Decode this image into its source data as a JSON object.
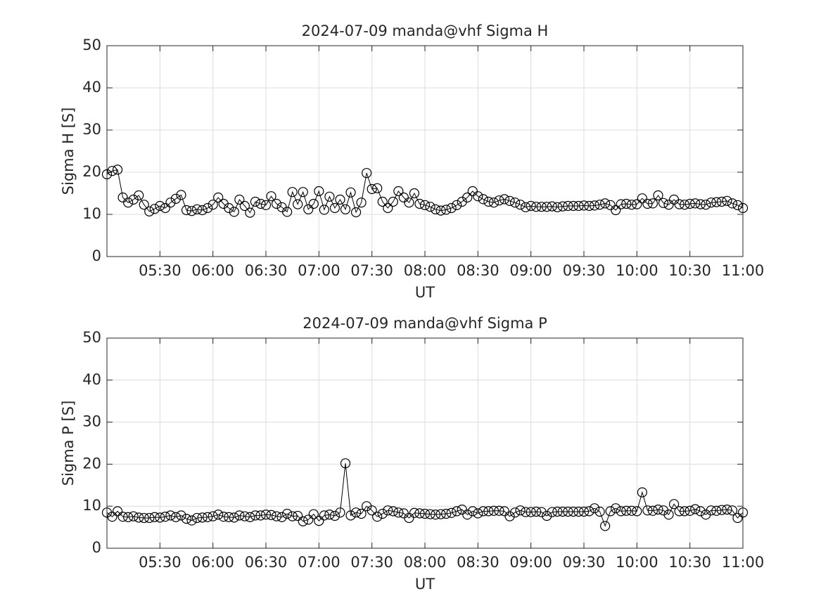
{
  "chart_data": [
    {
      "type": "line",
      "title": "2024-07-09  manda@vhf Sigma H",
      "x_label": "UT",
      "y_label": "Sigma H [S]",
      "color": "#000000",
      "marker": "circle",
      "grid": true,
      "xlim": [
        "05:00",
        "11:00"
      ],
      "xticks": [
        "05:30",
        "06:00",
        "06:30",
        "07:00",
        "07:30",
        "08:00",
        "08:30",
        "09:00",
        "09:30",
        "10:00",
        "10:30",
        "11:00"
      ],
      "ylim": [
        0,
        50
      ],
      "yticks": [
        0,
        10,
        20,
        30,
        40,
        50
      ],
      "x": [
        "05:00",
        "05:03",
        "05:06",
        "05:09",
        "05:12",
        "05:15",
        "05:18",
        "05:21",
        "05:24",
        "05:27",
        "05:30",
        "05:33",
        "05:36",
        "05:39",
        "05:42",
        "05:45",
        "05:48",
        "05:51",
        "05:54",
        "05:57",
        "06:00",
        "06:03",
        "06:06",
        "06:09",
        "06:12",
        "06:15",
        "06:18",
        "06:21",
        "06:24",
        "06:27",
        "06:30",
        "06:33",
        "06:36",
        "06:39",
        "06:42",
        "06:45",
        "06:48",
        "06:51",
        "06:54",
        "06:57",
        "07:00",
        "07:03",
        "07:06",
        "07:09",
        "07:12",
        "07:15",
        "07:18",
        "07:21",
        "07:24",
        "07:27",
        "07:30",
        "07:33",
        "07:36",
        "07:39",
        "07:42",
        "07:45",
        "07:48",
        "07:51",
        "07:54",
        "07:57",
        "08:00",
        "08:03",
        "08:06",
        "08:09",
        "08:12",
        "08:15",
        "08:18",
        "08:21",
        "08:24",
        "08:27",
        "08:30",
        "08:33",
        "08:36",
        "08:39",
        "08:42",
        "08:45",
        "08:48",
        "08:51",
        "08:54",
        "08:57",
        "09:00",
        "09:03",
        "09:06",
        "09:09",
        "09:12",
        "09:15",
        "09:18",
        "09:21",
        "09:24",
        "09:27",
        "09:30",
        "09:33",
        "09:36",
        "09:39",
        "09:42",
        "09:45",
        "09:48",
        "09:51",
        "09:54",
        "09:57",
        "10:00",
        "10:03",
        "10:06",
        "10:09",
        "10:12",
        "10:15",
        "10:18",
        "10:21",
        "10:24",
        "10:27",
        "10:30",
        "10:33",
        "10:36",
        "10:39",
        "10:42",
        "10:45",
        "10:48",
        "10:51",
        "10:54",
        "10:57",
        "11:00"
      ],
      "values": [
        19.5,
        20.3,
        20.6,
        14,
        12.8,
        13.5,
        14.5,
        12.3,
        10.7,
        11.3,
        12,
        11.5,
        12.8,
        13.7,
        14.6,
        11,
        10.8,
        11.2,
        11,
        11.5,
        12.3,
        14,
        12.5,
        11.5,
        10.6,
        13.5,
        12,
        10.4,
        13,
        12.5,
        12.2,
        14.3,
        12.5,
        11.7,
        10.6,
        15.3,
        12.4,
        15.3,
        11.2,
        12.5,
        15.5,
        11.1,
        14.2,
        11.5,
        13.5,
        11.2,
        15.2,
        10.5,
        12.8,
        19.8,
        16,
        16.2,
        13,
        11.5,
        13,
        15.5,
        14,
        12.8,
        15,
        12.5,
        12.2,
        11.8,
        11.2,
        10.9,
        11.1,
        11.5,
        12.2,
        13,
        14,
        15.5,
        14.3,
        13.6,
        13,
        12.8,
        13.3,
        13.6,
        13.2,
        12.8,
        12.3,
        11.7,
        12,
        11.8,
        11.8,
        11.8,
        11.9,
        11.7,
        11.9,
        12,
        12,
        12,
        12.1,
        12,
        12.1,
        12.3,
        12.6,
        12.2,
        11,
        12.4,
        12.5,
        12.3,
        12.4,
        13.8,
        12.5,
        12.6,
        14.5,
        12.7,
        12.3,
        13.5,
        12.4,
        12.3,
        12.5,
        12.6,
        12.4,
        12.3,
        12.8,
        12.9,
        13,
        13.2,
        12.6,
        12.2,
        11.5
      ]
    },
    {
      "type": "line",
      "title": "2024-07-09  manda@vhf Sigma P",
      "x_label": "UT",
      "y_label": "Sigma P [S]",
      "color": "#000000",
      "marker": "circle",
      "grid": true,
      "xlim": [
        "05:00",
        "11:00"
      ],
      "xticks": [
        "05:30",
        "06:00",
        "06:30",
        "07:00",
        "07:30",
        "08:00",
        "08:30",
        "09:00",
        "09:30",
        "10:00",
        "10:30",
        "11:00"
      ],
      "ylim": [
        0,
        50
      ],
      "yticks": [
        0,
        10,
        20,
        30,
        40,
        50
      ],
      "x": [
        "05:00",
        "05:03",
        "05:06",
        "05:09",
        "05:12",
        "05:15",
        "05:18",
        "05:21",
        "05:24",
        "05:27",
        "05:30",
        "05:33",
        "05:36",
        "05:39",
        "05:42",
        "05:45",
        "05:48",
        "05:51",
        "05:54",
        "05:57",
        "06:00",
        "06:03",
        "06:06",
        "06:09",
        "06:12",
        "06:15",
        "06:18",
        "06:21",
        "06:24",
        "06:27",
        "06:30",
        "06:33",
        "06:36",
        "06:39",
        "06:42",
        "06:45",
        "06:48",
        "06:51",
        "06:54",
        "06:57",
        "07:00",
        "07:03",
        "07:06",
        "07:09",
        "07:12",
        "07:15",
        "07:18",
        "07:21",
        "07:24",
        "07:27",
        "07:30",
        "07:33",
        "07:36",
        "07:39",
        "07:42",
        "07:45",
        "07:48",
        "07:51",
        "07:54",
        "07:57",
        "08:00",
        "08:03",
        "08:06",
        "08:09",
        "08:12",
        "08:15",
        "08:18",
        "08:21",
        "08:24",
        "08:27",
        "08:30",
        "08:33",
        "08:36",
        "08:39",
        "08:42",
        "08:45",
        "08:48",
        "08:51",
        "08:54",
        "08:57",
        "09:00",
        "09:03",
        "09:06",
        "09:09",
        "09:12",
        "09:15",
        "09:18",
        "09:21",
        "09:24",
        "09:27",
        "09:30",
        "09:33",
        "09:36",
        "09:39",
        "09:42",
        "09:45",
        "09:48",
        "09:51",
        "09:54",
        "09:57",
        "10:00",
        "10:03",
        "10:06",
        "10:09",
        "10:12",
        "10:15",
        "10:18",
        "10:21",
        "10:24",
        "10:27",
        "10:30",
        "10:33",
        "10:36",
        "10:39",
        "10:42",
        "10:45",
        "10:48",
        "10:51",
        "10:54",
        "10:57",
        "11:00"
      ],
      "values": [
        8.5,
        7.5,
        8.8,
        7.5,
        7.4,
        7.6,
        7.3,
        7.2,
        7.2,
        7.4,
        7.3,
        7.5,
        7.8,
        7.4,
        7.8,
        7,
        6.6,
        7.2,
        7.3,
        7.4,
        7.6,
        8,
        7.5,
        7.4,
        7.3,
        7.8,
        7.6,
        7.4,
        7.8,
        7.8,
        8,
        7.9,
        7.6,
        7.4,
        8.2,
        7.6,
        7.7,
        6.4,
        6.8,
        8.1,
        6.5,
        7.8,
        8,
        7.7,
        8.5,
        20.2,
        7.8,
        8.5,
        8.2,
        10,
        9,
        7.5,
        8.2,
        9,
        8.8,
        8.5,
        8.3,
        7.2,
        8.4,
        8.3,
        8.2,
        8.1,
        8,
        8.1,
        8.2,
        8.4,
        8.8,
        9.2,
        8,
        8.8,
        8.3,
        8.8,
        8.8,
        8.9,
        8.9,
        8.8,
        7.6,
        8.5,
        9,
        8.6,
        8.6,
        8.7,
        8.6,
        7.7,
        8.6,
        8.7,
        8.7,
        8.7,
        8.7,
        8.7,
        8.7,
        8.8,
        9.5,
        8.7,
        5.3,
        8.8,
        9.5,
        8.8,
        8.9,
        8.9,
        8.8,
        13.3,
        9,
        8.9,
        9.2,
        9,
        8,
        10.5,
        8.8,
        8.8,
        8.9,
        9.3,
        8.8,
        8,
        9,
        8.9,
        9.1,
        9.2,
        9,
        7.2,
        8.5
      ]
    }
  ]
}
